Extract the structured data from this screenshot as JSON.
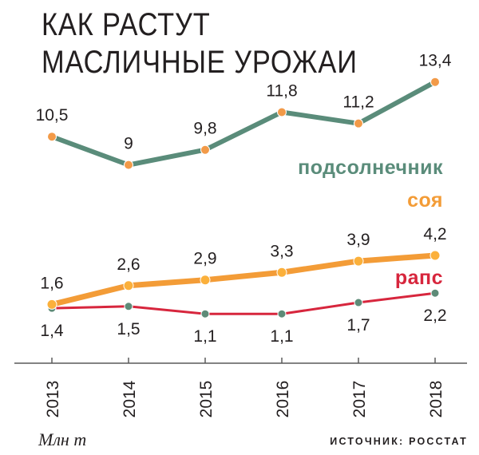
{
  "chart_data": {
    "type": "line",
    "title": "КАК РАСТУТ МАСЛИЧНЫЕ УРОЖАИ",
    "units": "Млн т",
    "source": "ИСТОЧНИК: РОССТАТ",
    "categories": [
      "2013",
      "2014",
      "2015",
      "2016",
      "2017",
      "2018"
    ],
    "ylim": [
      0,
      14
    ],
    "grid": false,
    "legend": "inline labels at right end of each line",
    "series": [
      {
        "name": "подсолнечник",
        "values": [
          10.5,
          9,
          9.8,
          11.8,
          11.2,
          13.4
        ],
        "labels": [
          "10,5",
          "9",
          "9,8",
          "11,8",
          "11,2",
          "13,4"
        ],
        "line_color": "#5a8c7a",
        "marker_color": "#f29a48",
        "label_position": "above"
      },
      {
        "name": "соя",
        "values": [
          1.6,
          2.6,
          2.9,
          3.3,
          3.9,
          4.2
        ],
        "labels": [
          "1,6",
          "2,6",
          "2,9",
          "3,3",
          "3,9",
          "4,2"
        ],
        "line_color": "#f39c37",
        "marker_color": "#fbb03b",
        "label_position": "above"
      },
      {
        "name": "рапс",
        "values": [
          1.4,
          1.5,
          1.1,
          1.1,
          1.7,
          2.2
        ],
        "labels": [
          "1,4",
          "1,5",
          "1,1",
          "1,1",
          "1,7",
          "2,2"
        ],
        "line_color": "#d7263d",
        "marker_color": "#5e8b78",
        "label_position": "below"
      }
    ]
  }
}
